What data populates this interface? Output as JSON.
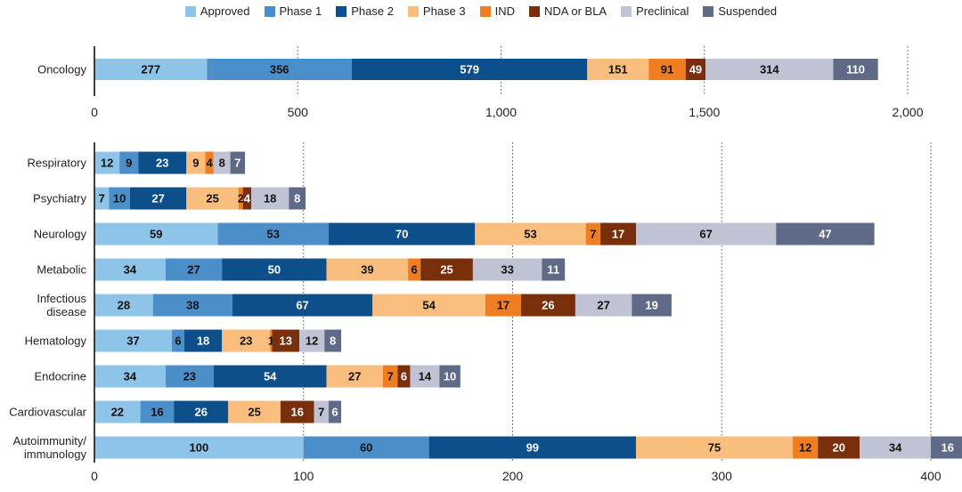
{
  "series_names": [
    "Approved",
    "Phase 1",
    "Phase 2",
    "Phase 3",
    "IND",
    "NDA or BLA",
    "Preclinical",
    "Suspended"
  ],
  "colors": [
    "#8ec4e8",
    "#4a8fc9",
    "#0d4f8b",
    "#f9bd7e",
    "#ef7d22",
    "#7a2f0c",
    "#c0c3d3",
    "#5f6b86"
  ],
  "label_colors": [
    "#111111",
    "#111111",
    "#ffffff",
    "#111111",
    "#111111",
    "#ffffff",
    "#111111",
    "#ffffff"
  ],
  "chart_data": [
    {
      "type": "bar",
      "orientation": "horizontal",
      "stacked": true,
      "categories": [
        "Oncology"
      ],
      "series": [
        {
          "name": "Approved",
          "values": [
            277
          ]
        },
        {
          "name": "Phase 1",
          "values": [
            356
          ]
        },
        {
          "name": "Phase 2",
          "values": [
            579
          ]
        },
        {
          "name": "Phase 3",
          "values": [
            151
          ]
        },
        {
          "name": "IND",
          "values": [
            91
          ]
        },
        {
          "name": "NDA or BLA",
          "values": [
            49
          ]
        },
        {
          "name": "Preclinical",
          "values": [
            314
          ]
        },
        {
          "name": "Suspended",
          "values": [
            110
          ]
        }
      ],
      "xlim": [
        0,
        2000
      ],
      "ticks": [
        0,
        500,
        1000,
        1500,
        2000
      ],
      "tick_labels": [
        "0",
        "500",
        "1,000",
        "1,500",
        "2,000"
      ],
      "grid": "dotted vertical",
      "legend": "top"
    },
    {
      "type": "bar",
      "orientation": "horizontal",
      "stacked": true,
      "categories": [
        "Respiratory",
        "Psychiatry",
        "Neurology",
        "Metabolic",
        "Infectious\ndisease",
        "Hematology",
        "Endocrine",
        "Cardiovascular",
        "Autoimmunity/\nimmunology"
      ],
      "series": [
        {
          "name": "Approved",
          "values": [
            12,
            7,
            59,
            34,
            28,
            37,
            34,
            22,
            100
          ]
        },
        {
          "name": "Phase 1",
          "values": [
            9,
            10,
            53,
            27,
            38,
            6,
            23,
            16,
            60
          ]
        },
        {
          "name": "Phase 2",
          "values": [
            23,
            27,
            70,
            50,
            67,
            18,
            54,
            26,
            99
          ]
        },
        {
          "name": "Phase 3",
          "values": [
            9,
            25,
            53,
            39,
            54,
            23,
            27,
            25,
            75
          ]
        },
        {
          "name": "IND",
          "values": [
            4,
            2,
            7,
            6,
            17,
            1,
            7,
            0,
            12
          ]
        },
        {
          "name": "NDA or BLA",
          "values": [
            0,
            4,
            17,
            25,
            26,
            13,
            6,
            16,
            20
          ]
        },
        {
          "name": "Preclinical",
          "values": [
            8,
            18,
            67,
            33,
            27,
            12,
            14,
            7,
            34
          ]
        },
        {
          "name": "Suspended",
          "values": [
            7,
            8,
            47,
            11,
            19,
            8,
            10,
            6,
            16
          ]
        }
      ],
      "xlim": [
        0,
        400
      ],
      "ticks": [
        0,
        100,
        200,
        300,
        400
      ],
      "tick_labels": [
        "0",
        "100",
        "200",
        "300",
        "400"
      ],
      "grid": "dotted vertical"
    }
  ]
}
